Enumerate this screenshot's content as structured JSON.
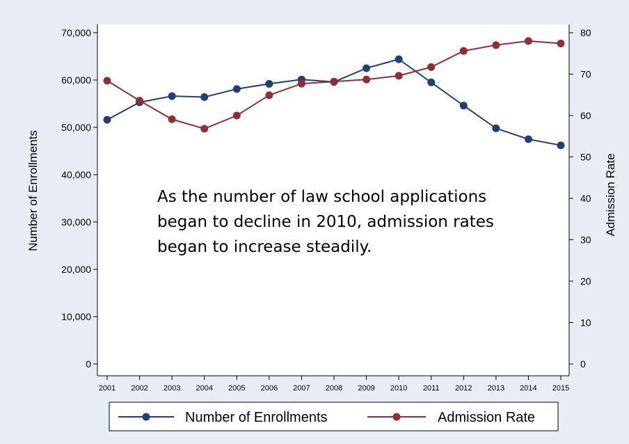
{
  "chart_data": {
    "type": "line",
    "title": "",
    "x": [
      "2001",
      "2002",
      "2003",
      "2004",
      "2005",
      "2006",
      "2007",
      "2008",
      "2009",
      "2010",
      "2011",
      "2012",
      "2013",
      "2014",
      "2015"
    ],
    "y_left": {
      "label": "Number  of Enrollments",
      "lim": [
        0,
        70000
      ],
      "ticks": [
        "0",
        "10,000",
        "20,000",
        "30,000",
        "40,000",
        "50,000",
        "60,000",
        "70,000"
      ],
      "tick_values": [
        0,
        10000,
        20000,
        30000,
        40000,
        50000,
        60000,
        70000
      ]
    },
    "y_right": {
      "label": "Admission Rate",
      "lim": [
        0,
        80
      ],
      "ticks": [
        "0",
        "10",
        "20",
        "30",
        "40",
        "50",
        "60",
        "70",
        "80"
      ],
      "tick_values": [
        0,
        10,
        20,
        30,
        40,
        50,
        60,
        70,
        80
      ]
    },
    "series": [
      {
        "name": "Number  of Enrollments",
        "axis": "left",
        "color": "#1f3f77",
        "values": [
          51600,
          55300,
          56600,
          56400,
          58100,
          59200,
          60100,
          59600,
          62500,
          64400,
          59500,
          54600,
          49800,
          47500,
          46200
        ]
      },
      {
        "name": "Admission Rate",
        "axis": "right",
        "color": "#8e2f35",
        "values": [
          68.4,
          63.6,
          59.1,
          56.8,
          60.0,
          64.9,
          67.7,
          68.2,
          68.7,
          69.6,
          71.7,
          75.6,
          77.0,
          78.0,
          77.4
        ]
      }
    ],
    "annotation": [
      "As the number of law school applications",
      "began to decline in 2010, admission rates",
      "began to increase steadily."
    ],
    "grid": false,
    "legend_position": "bottom"
  }
}
